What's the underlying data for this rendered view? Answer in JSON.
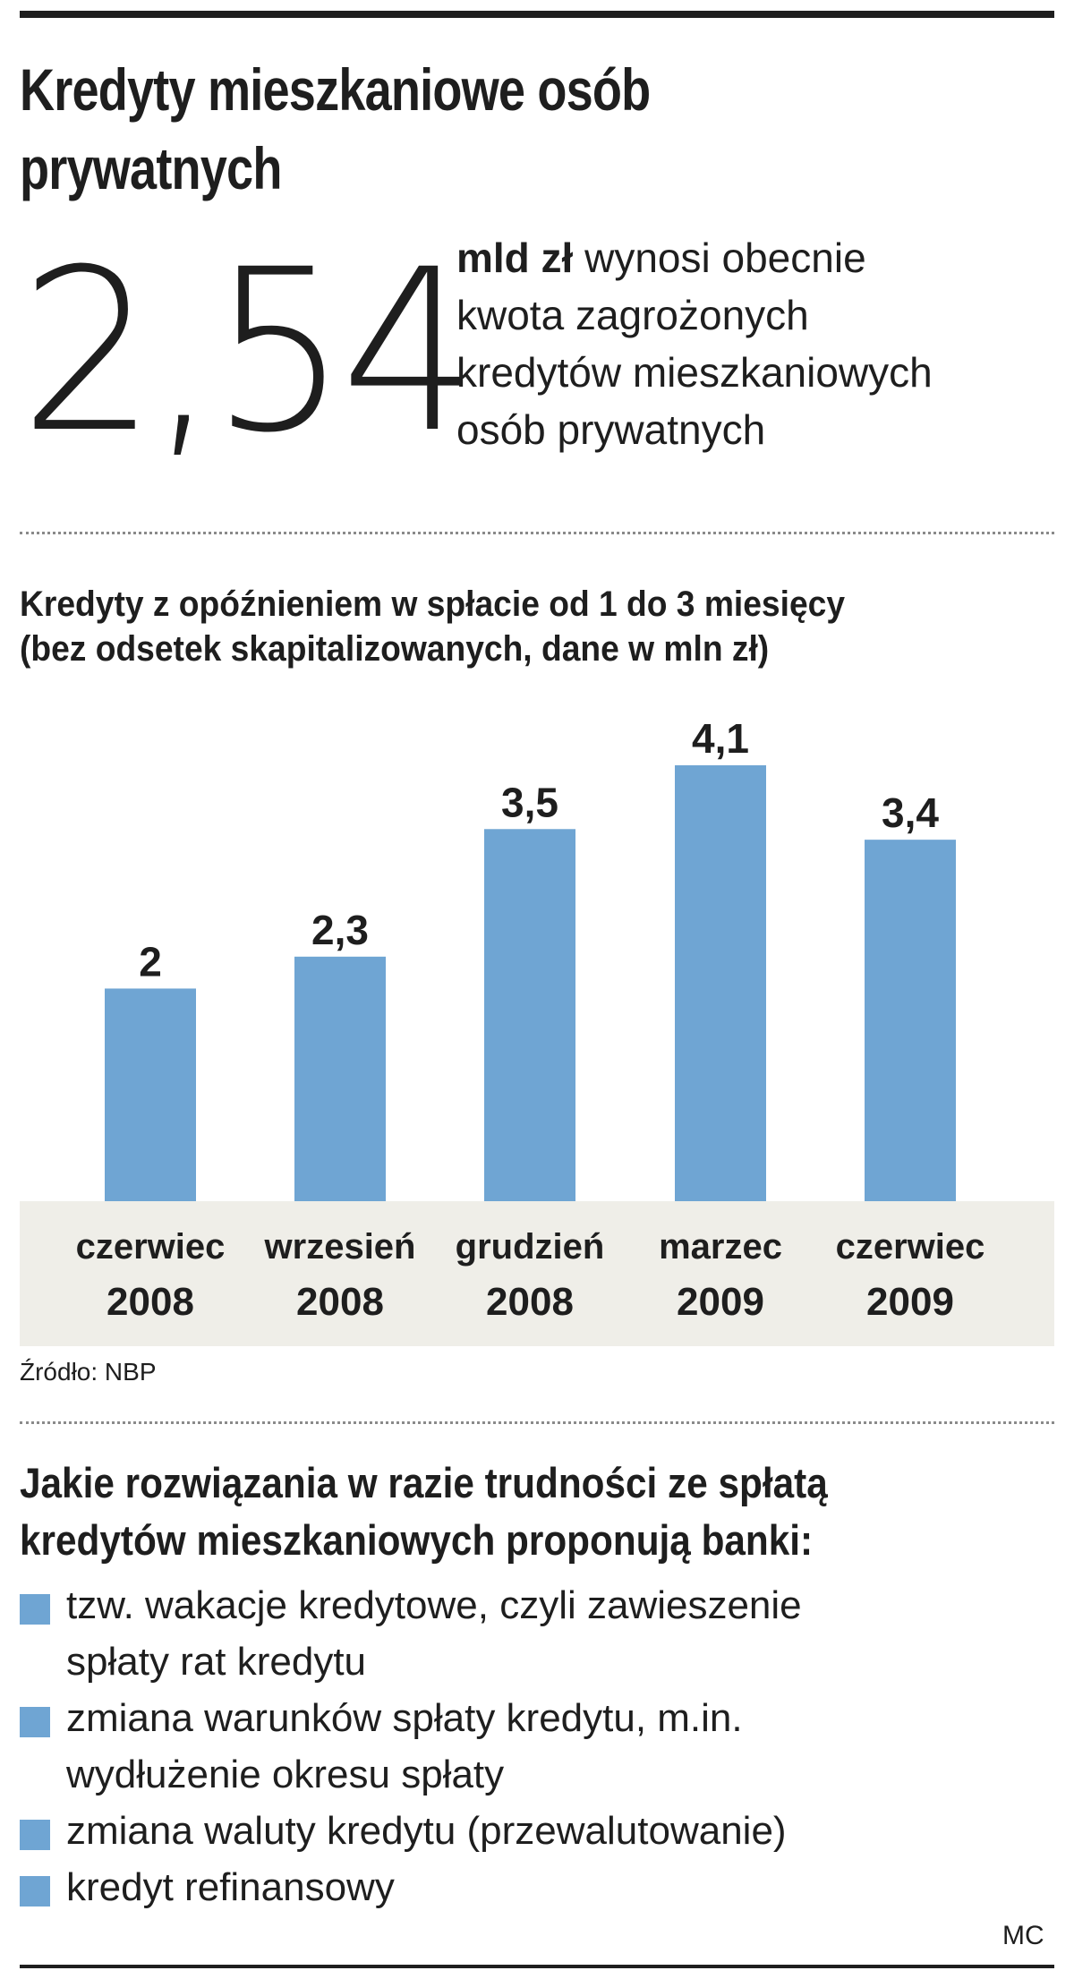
{
  "header": {
    "title_line1": "Kredyty mieszkaniowe osób",
    "title_line2": "prywatnych"
  },
  "highlight": {
    "value": "2,54",
    "unit": "mld zł",
    "text_line1": "wynosi obecnie",
    "text_line2": "kwota zagrożonych",
    "text_line3": "kredytów mieszkaniowych",
    "text_line4": "osób prywatnych"
  },
  "chart_data": {
    "type": "bar",
    "title": "Kredyty z opóźnieniem w spłacie od 1 do 3 miesięcy",
    "subtitle": "(bez odsetek skapitalizowanych, dane w mln zł)",
    "categories": [
      [
        "czerwiec",
        "2008"
      ],
      [
        "wrzesień",
        "2008"
      ],
      [
        "grudzień",
        "2008"
      ],
      [
        "marzec",
        "2009"
      ],
      [
        "czerwiec",
        "2009"
      ]
    ],
    "values": [
      2,
      2.3,
      3.5,
      4.1,
      3.4
    ],
    "value_labels": [
      "2",
      "2,3",
      "3,5",
      "4,1",
      "3,4"
    ],
    "bar_color": "#6fa5d3",
    "xlabel": "",
    "ylabel": "",
    "ylim": [
      0,
      4.1
    ],
    "grid": false,
    "legend": "none"
  },
  "source": "Źródło: NBP",
  "solutions": {
    "title_line1": "Jakie rozwiązania w razie trudności ze spłatą",
    "title_line2": "kredytów mieszkaniowych proponują banki:",
    "items": [
      [
        "tzw. wakacje kredytowe, czyli zawieszenie",
        "spłaty rat kredytu"
      ],
      [
        "zmiana warunków spłaty kredytu, m.in.",
        "wydłużenie okresu spłaty"
      ],
      [
        "zmiana waluty kredytu (przewalutowanie)"
      ],
      [
        "kredyt refinansowy"
      ]
    ],
    "marker_color": "#6fa5d3"
  },
  "credit": "MC"
}
